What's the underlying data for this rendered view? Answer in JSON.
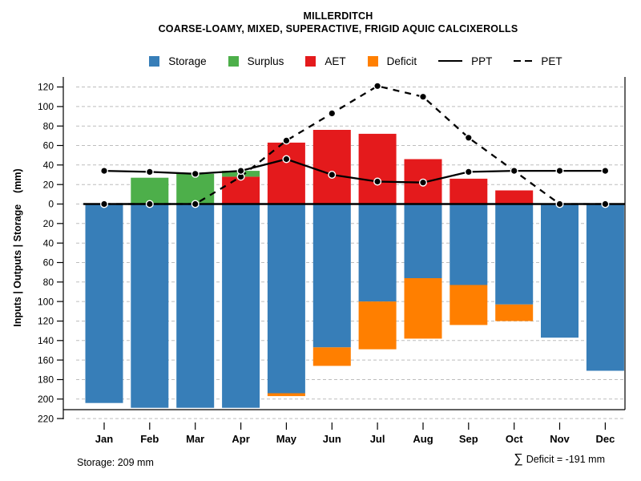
{
  "header": {
    "title": "MILLERDITCH",
    "subtitle": "COARSE-LOAMY, MIXED, SUPERACTIVE, FRIGID AQUIC CALCIXEROLLS"
  },
  "legend": [
    {
      "label": "Storage",
      "swatch": "#377EB8"
    },
    {
      "label": "Surplus",
      "swatch": "#4DAF4A"
    },
    {
      "label": "AET",
      "swatch": "#E41A1C"
    },
    {
      "label": "Deficit",
      "swatch": "#FF7F00"
    },
    {
      "label": "PPT",
      "line": "solid"
    },
    {
      "label": "PET",
      "line": "dashed"
    }
  ],
  "footer": {
    "storage_note": "Storage: 209 mm",
    "sigma": "∑",
    "deficit_note": "Deficit = -191 mm"
  },
  "chart_data": {
    "type": "bar",
    "subtype": "monthly-water-balance-with-line-overlays",
    "title": "MILLERDITCH",
    "subtitle": "COARSE-LOAMY, MIXED, SUPERACTIVE, FRIGID AQUIC CALCIXEROLLS",
    "categories": [
      "Jan",
      "Feb",
      "Mar",
      "Apr",
      "May",
      "Jun",
      "Jul",
      "Aug",
      "Sep",
      "Oct",
      "Nov",
      "Dec"
    ],
    "series": [
      {
        "name": "Storage",
        "type": "bar",
        "direction": "below-zero",
        "color": "#377EB8",
        "values": [
          204,
          209,
          209,
          209,
          194,
          147,
          100,
          76,
          83,
          103,
          137,
          171
        ]
      },
      {
        "name": "Deficit",
        "type": "bar",
        "direction": "below-zero-stacked-under-storage",
        "color": "#FF7F00",
        "values": [
          0,
          0,
          0,
          0,
          3,
          19,
          49,
          62,
          41,
          17,
          0,
          0
        ],
        "sum_mm": -191
      },
      {
        "name": "AET",
        "type": "bar",
        "direction": "above-zero",
        "color": "#E41A1C",
        "values": [
          0,
          0,
          0,
          28,
          63,
          76,
          72,
          46,
          26,
          14,
          0,
          0
        ]
      },
      {
        "name": "Surplus",
        "type": "bar",
        "direction": "above-zero-stacked-on-aet",
        "color": "#4DAF4A",
        "values": [
          0,
          27,
          31,
          6,
          0,
          0,
          0,
          0,
          0,
          0,
          0,
          0
        ]
      },
      {
        "name": "PPT",
        "type": "line",
        "style": "solid",
        "marker": "filled-black-circle-white-ring",
        "color": "#000000",
        "values": [
          34,
          33,
          31,
          34,
          46,
          30,
          23,
          22,
          33,
          34,
          34,
          34
        ]
      },
      {
        "name": "PET",
        "type": "line",
        "style": "dashed",
        "marker": "filled-black-circle-white-ring",
        "color": "#000000",
        "values": [
          0,
          0,
          0,
          28,
          65,
          93,
          121,
          110,
          68,
          34,
          0,
          0
        ]
      }
    ],
    "ylabel": "Inputs | Outputs | Storage    (mm)",
    "xlabel": "",
    "ylim": [
      -220,
      130
    ],
    "y_axis": {
      "tick_step": 20,
      "top_tick": 120,
      "bottom_tick": -220,
      "labels_absolute_value": true
    },
    "grid": "dashed-horizontal",
    "legend_position": "top-center",
    "storage_capacity_mm": 209,
    "deficit_sum_mm": -191
  }
}
